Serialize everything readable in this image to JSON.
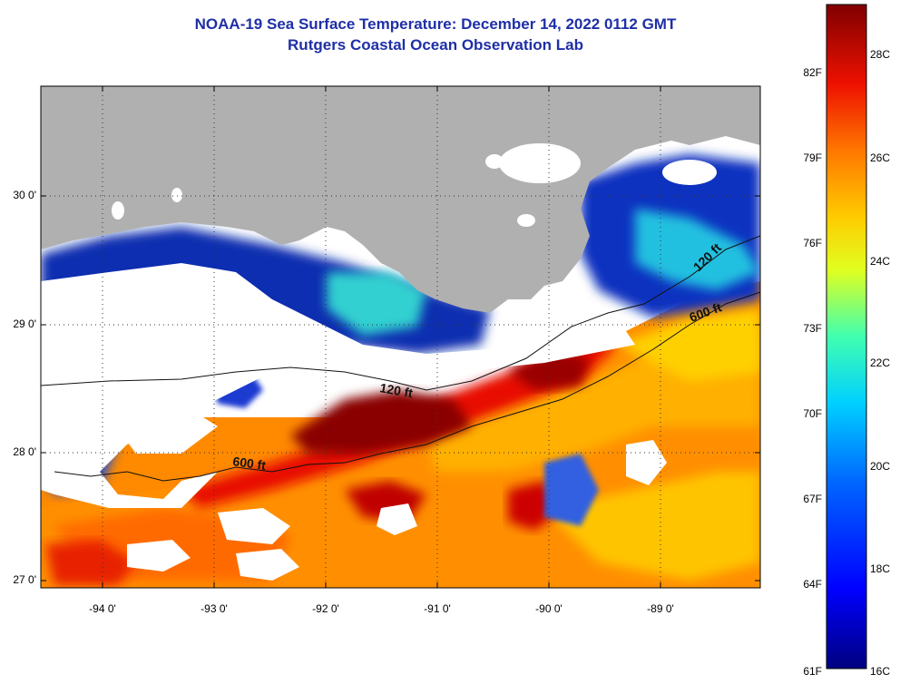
{
  "header": {
    "title": "NOAA-19 Sea Surface Temperature:  December 14, 2022 0112 GMT",
    "subtitle": "Rutgers Coastal Ocean Observation Lab"
  },
  "map": {
    "lat_ticks": [
      "30 0'",
      "29 0'",
      "28 0'",
      "27 0'"
    ],
    "lon_ticks": [
      "-94 0'",
      "-93 0'",
      "-92 0'",
      "-91 0'",
      "-90 0'",
      "-89 0'"
    ],
    "lon_range": [
      -94.6,
      -88.25
    ],
    "lat_range": [
      26.92,
      30.85
    ],
    "contour_labels": [
      {
        "text": "120 ft"
      },
      {
        "text": "600 ft"
      },
      {
        "text": "600 ft"
      },
      {
        "text": "120 ft"
      }
    ]
  },
  "colorbar": {
    "fahrenheit_ticks": [
      "82F",
      "79F",
      "76F",
      "73F",
      "70F",
      "67F",
      "64F",
      "61F"
    ],
    "celsius_ticks": [
      "28C",
      "26C",
      "24C",
      "22C",
      "20C",
      "18C",
      "16C"
    ],
    "colors": {
      "cold": "#000080",
      "blue": "#0033ff",
      "cyan": "#00e0e0",
      "yellow": "#ffee00",
      "orange": "#ff8800",
      "red": "#e81000",
      "hot": "#800000",
      "land": "#b0b0b0",
      "cloud": "#ffffff"
    }
  }
}
